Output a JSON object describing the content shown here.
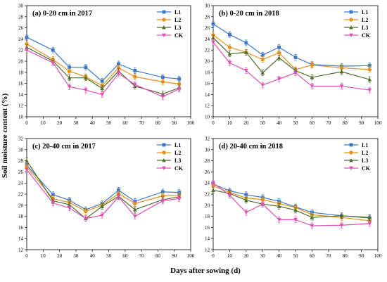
{
  "figure": {
    "ylabel": "Soil moisture content (%)",
    "xlabel": "Days after sowing (d)"
  },
  "colors": {
    "L1": "#3c78c8",
    "L2": "#e8901e",
    "L3": "#4e6e2c",
    "CK": "#e050b4"
  },
  "chart_data": [
    {
      "type": "line",
      "title": "(a) 0-20 cm in 2017",
      "xlim": [
        0,
        100
      ],
      "ylim": [
        10,
        30
      ],
      "xticks": [
        0,
        10,
        20,
        30,
        40,
        50,
        60,
        70,
        80,
        90,
        100
      ],
      "yticks": [
        10,
        12,
        14,
        16,
        18,
        20,
        22,
        24,
        26,
        28,
        30
      ],
      "grid": false,
      "legend": "top-right",
      "x": [
        0,
        16,
        26,
        36,
        46,
        56,
        66,
        83,
        93
      ],
      "series": [
        {
          "name": "L1",
          "values": [
            24.3,
            22.0,
            18.9,
            18.9,
            16.4,
            19.5,
            18.3,
            17.1,
            16.8
          ]
        },
        {
          "name": "L2",
          "values": [
            23.1,
            20.3,
            18.2,
            17.2,
            15.6,
            18.8,
            17.2,
            16.3,
            15.9
          ]
        },
        {
          "name": "L3",
          "values": [
            22.5,
            20.0,
            17.0,
            17.0,
            15.1,
            18.2,
            15.5,
            14.1,
            15.2
          ]
        },
        {
          "name": "CK",
          "values": [
            22.0,
            19.7,
            15.4,
            14.8,
            14.0,
            17.8,
            15.8,
            13.6,
            15.0
          ]
        }
      ]
    },
    {
      "type": "line",
      "title": "(b) 0-20 cm in 2018",
      "xlim": [
        0,
        100
      ],
      "ylim": [
        10,
        30
      ],
      "xticks": [
        0,
        10,
        20,
        30,
        40,
        50,
        60,
        70,
        80,
        90,
        100
      ],
      "yticks": [
        10,
        12,
        14,
        16,
        18,
        20,
        22,
        24,
        26,
        28,
        30
      ],
      "grid": false,
      "legend": "top-right",
      "x": [
        0,
        10,
        20,
        30,
        40,
        50,
        60,
        78,
        95
      ],
      "series": [
        {
          "name": "L1",
          "values": [
            26.7,
            24.8,
            23.3,
            21.1,
            22.5,
            20.7,
            19.4,
            19.1,
            19.2
          ]
        },
        {
          "name": "L2",
          "values": [
            24.7,
            22.5,
            21.6,
            20.3,
            21.5,
            18.5,
            19.3,
            18.8,
            18.5
          ]
        },
        {
          "name": "L3",
          "values": [
            24.2,
            21.3,
            21.6,
            17.9,
            20.6,
            18.3,
            17.1,
            18.1,
            16.7
          ]
        },
        {
          "name": "CK",
          "values": [
            23.4,
            19.7,
            18.3,
            15.7,
            16.8,
            17.9,
            15.5,
            15.5,
            14.8
          ]
        }
      ]
    },
    {
      "type": "line",
      "title": "(c) 20-40 cm in 2017",
      "xlim": [
        0,
        100
      ],
      "ylim": [
        12,
        32
      ],
      "xticks": [
        0,
        10,
        20,
        30,
        40,
        50,
        60,
        70,
        80,
        90,
        100
      ],
      "yticks": [
        12,
        14,
        16,
        18,
        20,
        22,
        24,
        26,
        28,
        30,
        32
      ],
      "grid": false,
      "legend": "top-right",
      "x": [
        0,
        16,
        26,
        36,
        46,
        56,
        66,
        83,
        93
      ],
      "series": [
        {
          "name": "L1",
          "values": [
            27.2,
            21.9,
            20.9,
            19.2,
            20.3,
            22.7,
            20.7,
            22.4,
            22.3
          ]
        },
        {
          "name": "L2",
          "values": [
            26.9,
            21.2,
            20.5,
            18.9,
            20.0,
            22.1,
            20.3,
            21.7,
            21.8
          ]
        },
        {
          "name": "L3",
          "values": [
            28.0,
            20.8,
            20.1,
            17.6,
            19.8,
            21.6,
            19.2,
            21.0,
            21.5
          ]
        },
        {
          "name": "CK",
          "values": [
            26.4,
            20.4,
            19.5,
            17.6,
            18.2,
            21.5,
            18.0,
            20.8,
            21.2
          ]
        }
      ]
    },
    {
      "type": "line",
      "title": "(d) 20-40 cm in 2018",
      "xlim": [
        0,
        100
      ],
      "ylim": [
        12,
        32
      ],
      "xticks": [
        0,
        10,
        20,
        30,
        40,
        50,
        60,
        70,
        80,
        90,
        100
      ],
      "yticks": [
        12,
        14,
        16,
        18,
        20,
        22,
        24,
        26,
        28,
        30,
        32
      ],
      "grid": false,
      "legend": "top-right",
      "x": [
        0,
        10,
        20,
        30,
        40,
        50,
        60,
        78,
        95
      ],
      "series": [
        {
          "name": "L1",
          "values": [
            23.8,
            22.6,
            21.9,
            21.4,
            20.7,
            19.7,
            18.7,
            18.1,
            17.7
          ]
        },
        {
          "name": "L2",
          "values": [
            23.5,
            22.3,
            21.3,
            21.0,
            20.3,
            19.6,
            18.3,
            17.8,
            17.2
          ]
        },
        {
          "name": "L3",
          "values": [
            22.7,
            22.1,
            20.9,
            20.2,
            19.8,
            19.1,
            17.8,
            18.1,
            17.8
          ]
        },
        {
          "name": "CK",
          "values": [
            24.0,
            21.8,
            18.7,
            20.2,
            17.4,
            17.4,
            16.3,
            16.4,
            16.7
          ]
        }
      ]
    }
  ]
}
